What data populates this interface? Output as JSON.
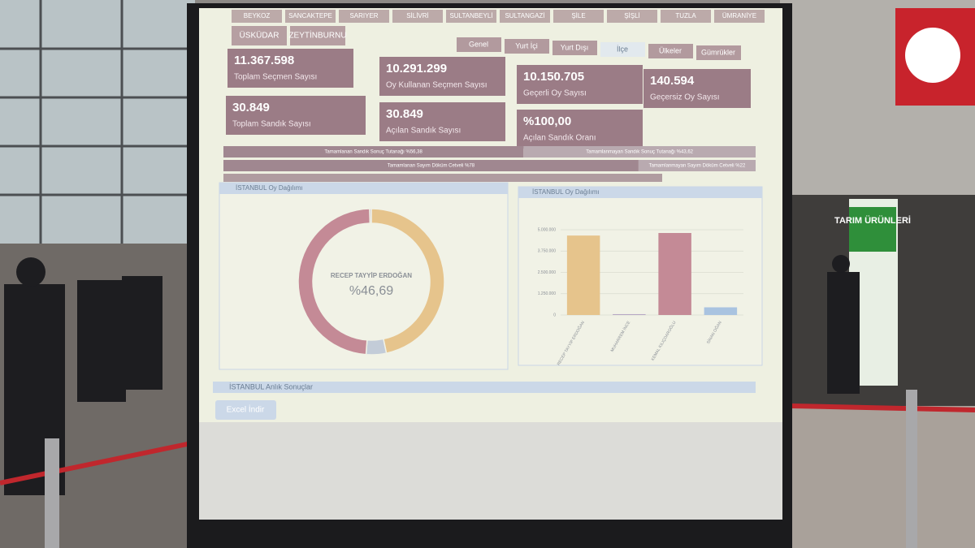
{
  "sign": "TARIM ÜRÜNLERİ",
  "screen": {
    "district_tabs_top": [
      "BEYKOZ",
      "SANCAKTEPE",
      "SARIYER",
      "SİLİVRİ",
      "SULTANBEYLİ",
      "SULTANGAZİ",
      "ŞİLE",
      "ŞİŞLİ",
      "TUZLA",
      "ÜMRANİYE"
    ],
    "district_tabs_bottom": [
      "ÜSKÜDAR",
      "ZEYTİNBURNU"
    ],
    "scope_tabs": [
      "Genel",
      "Yurt İçi",
      "Yurt Dışı",
      "İlçe",
      "Ülkeler",
      "Gümrükler"
    ],
    "stats": [
      {
        "value": "11.367.598",
        "label": "Toplam Seçmen Sayısı"
      },
      {
        "value": "10.291.299",
        "label": "Oy Kullanan Seçmen Sayısı"
      },
      {
        "value": "10.150.705",
        "label": "Geçerli Oy Sayısı"
      },
      {
        "value": "140.594",
        "label": "Geçersiz Oy Sayısı"
      },
      {
        "value": "30.849",
        "label": "Toplam Sandık Sayısı"
      },
      {
        "value": "30.849",
        "label": "Açılan Sandık Sayısı"
      },
      {
        "value": "%100,00",
        "label": "Açılan Sandık Oranı"
      }
    ],
    "progress": [
      {
        "left": 56.38,
        "left_label": "Tamamlanan Sandık Sonuç Tutanağı %56,38",
        "right": 43.62,
        "right_label": "Tamamlanmayan Sandık Sonuç Tutanağı %43,62"
      },
      {
        "left": 78,
        "left_label": "Tamamlanan Sayım Döküm Cetveli %78",
        "right": 22,
        "right_label": "Tamamlanmayan Sayım Döküm Cetveli %22"
      }
    ],
    "donut": {
      "title": "İSTANBUL Oy Dağılımı",
      "center_name": "RECEP TAYYİP ERDOĞAN",
      "center_label": "%46,69",
      "values": [
        46.69,
        4.46,
        48.49,
        0.36
      ],
      "colors": [
        "#e6c48c",
        "#c3ccd8",
        "#c48a96",
        "#b7a7c4"
      ]
    },
    "chart_data": {
      "type": "bar",
      "title": "İSTANBUL Oy Dağılımı",
      "categories": [
        "RECEP TAYYİP ERDOĞAN",
        "MUHARREM İNCE",
        "KEMAL KILIÇDAROĞLU",
        "SİNAN OĞAN"
      ],
      "values": [
        4660000,
        50000,
        4810000,
        450000
      ],
      "colors": [
        "#e6c48c",
        "#b7a7c4",
        "#c48a96",
        "#a9c3e0"
      ],
      "ylim": [
        0,
        5000000
      ],
      "yticks": [
        0,
        {
          "value": 1250000,
          "label": "1.250.000"
        },
        {
          "value": 2500000,
          "label": "2.500.000"
        },
        {
          "value": 3750000,
          "label": "3.750.000"
        },
        {
          "value": 5000000,
          "label": "5.000.000"
        }
      ],
      "grid": true
    },
    "results_title": "İSTANBUL Anlık Sonuçlar",
    "excel_button": "Excel İndir"
  }
}
